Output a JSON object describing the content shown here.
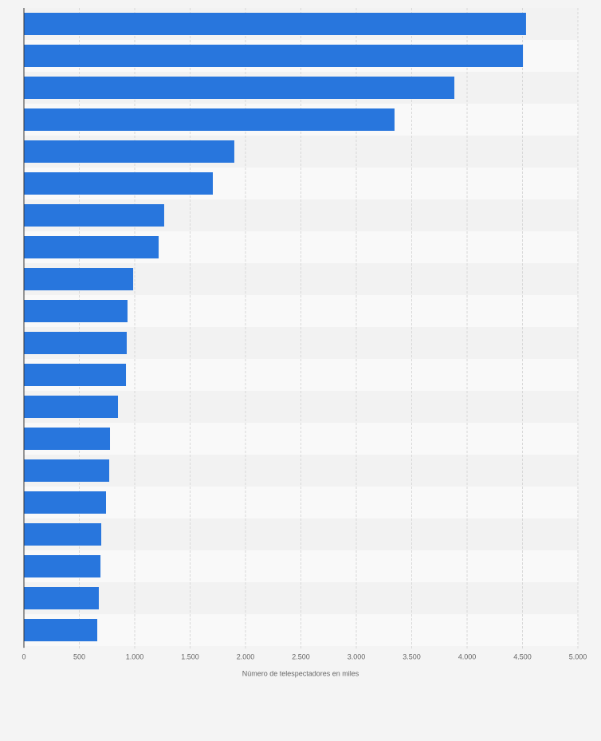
{
  "chart_data": {
    "type": "bar",
    "orientation": "horizontal",
    "x_label": "Número de telespectadores en miles",
    "categories": [
      null,
      null,
      null,
      null,
      null,
      null,
      null,
      null,
      null,
      null,
      null,
      null,
      null,
      null,
      null,
      null,
      null,
      null,
      null,
      null
    ],
    "values": [
      4532,
      4504,
      3885,
      3345,
      1899,
      1705,
      1266,
      1216,
      986,
      935,
      928,
      921,
      849,
      777,
      770,
      741,
      698,
      691,
      676,
      662
    ],
    "color": "#2876dd",
    "xlim": [
      0,
      5000
    ],
    "xticks": [
      0,
      500,
      {
        "value": 1000,
        "label": "1.000"
      },
      {
        "value": 1500,
        "label": "1.500"
      },
      {
        "value": 2000,
        "label": "2.000"
      },
      {
        "value": 2500,
        "label": "2.500"
      },
      {
        "value": 3000,
        "label": "3.000"
      },
      {
        "value": 3500,
        "label": "3.500"
      },
      {
        "value": 4000,
        "label": "4.000"
      },
      {
        "value": 4500,
        "label": "4.500"
      },
      {
        "value": 5000,
        "label": "5.000"
      }
    ],
    "grid": true
  }
}
